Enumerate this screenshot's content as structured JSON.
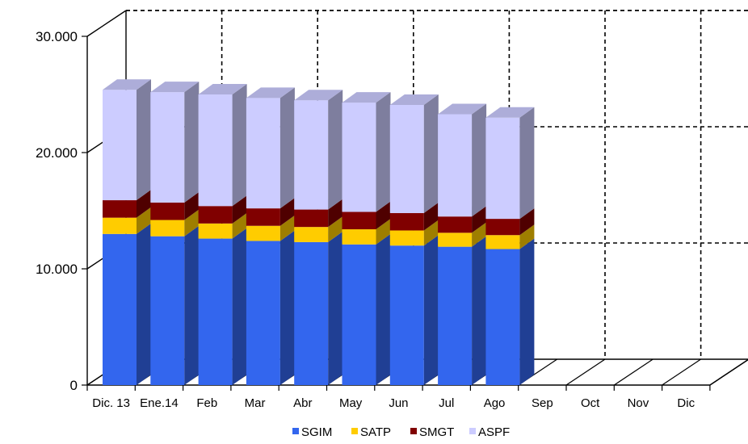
{
  "chart_data": {
    "type": "bar",
    "stacked": true,
    "three_d": true,
    "categories": [
      "Dic. 13",
      "Ene.14",
      "Feb",
      "Mar",
      "Abr",
      "May",
      "Jun",
      "Jul",
      "Ago",
      "Sep",
      "Oct",
      "Nov",
      "Dic"
    ],
    "series": [
      {
        "name": "SGIM",
        "color": "#3366ee",
        "values": [
          13000,
          12800,
          12600,
          12400,
          12300,
          12100,
          12000,
          11900,
          11700,
          null,
          null,
          null,
          null
        ]
      },
      {
        "name": "SATP",
        "color": "#ffcc00",
        "values": [
          1400,
          1400,
          1300,
          1300,
          1300,
          1300,
          1300,
          1200,
          1200,
          null,
          null,
          null,
          null
        ]
      },
      {
        "name": "SMGT",
        "color": "#800000",
        "values": [
          1500,
          1500,
          1500,
          1500,
          1500,
          1500,
          1500,
          1400,
          1400,
          null,
          null,
          null,
          null
        ]
      },
      {
        "name": "ASPF",
        "color": "#ccccff",
        "values": [
          9500,
          9500,
          9600,
          9500,
          9400,
          9400,
          9300,
          8800,
          8700,
          null,
          null,
          null,
          null
        ]
      }
    ],
    "yticks": [
      "0",
      "10.000",
      "20.000",
      "30.000"
    ],
    "ylim": [
      0,
      30000
    ],
    "grid": true,
    "legend": "bottom"
  }
}
